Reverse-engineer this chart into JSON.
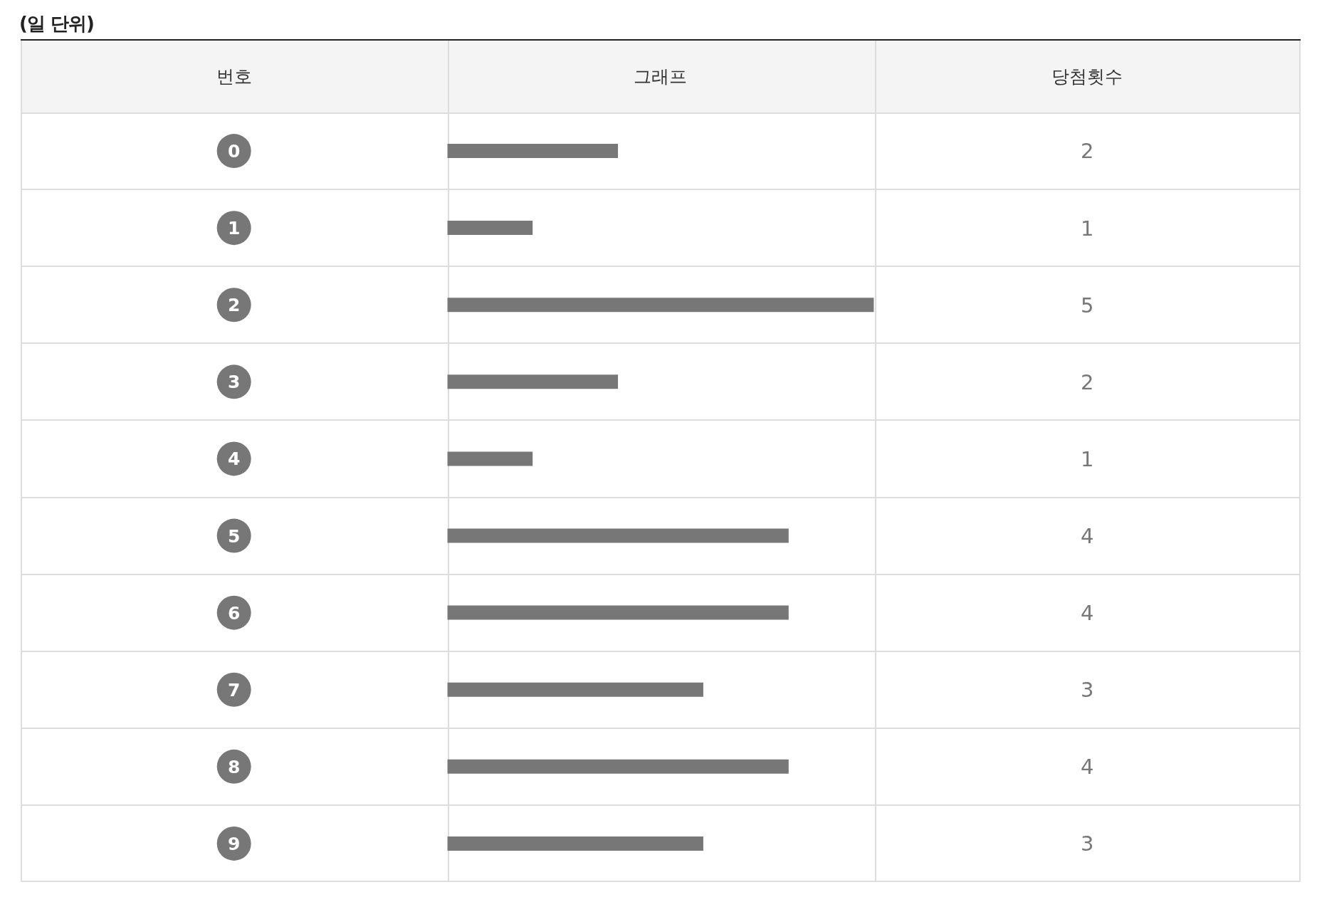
{
  "chart_data": {
    "type": "bar",
    "orientation": "horizontal",
    "title": "(일 단위)",
    "ylabel": "번호",
    "xlabel": "그래프",
    "annotations": [
      "당첨횟수"
    ],
    "categories": [
      "0",
      "1",
      "2",
      "3",
      "4",
      "5",
      "6",
      "7",
      "8",
      "9"
    ],
    "values": [
      2,
      1,
      5,
      2,
      1,
      4,
      4,
      3,
      4,
      3
    ],
    "color": "#777777",
    "xlim": [
      0,
      5
    ],
    "data_labels": true,
    "tick_labels": "y"
  }
}
